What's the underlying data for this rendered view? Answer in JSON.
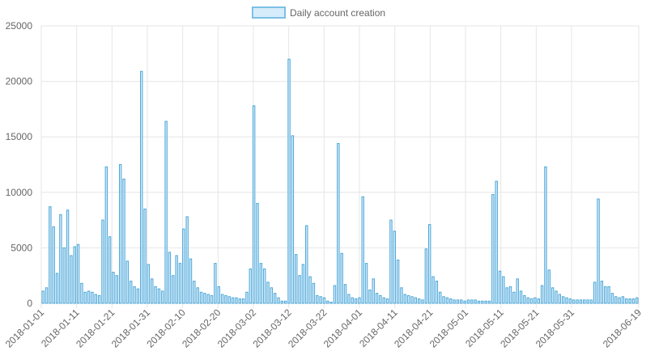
{
  "legend": {
    "label": "Daily account creation",
    "swatch_fill": "#d6ecfa",
    "swatch_stroke": "#7cc0e6"
  },
  "colors": {
    "bar_fill": "#d6ecfa",
    "bar_stroke": "#4aa6d8",
    "grid": "#e6e6e6",
    "axis_text": "#666666"
  },
  "chart_data": {
    "type": "bar",
    "start_date": "2018-01-01",
    "end_date": "2018-06-19",
    "x_tick_labels": [
      "2018-01-01",
      "2018-01-11",
      "2018-01-21",
      "2018-01-31",
      "2018-02-10",
      "2018-02-20",
      "2018-03-02",
      "2018-03-12",
      "2018-03-22",
      "2018-04-01",
      "2018-04-11",
      "2018-04-21",
      "2018-05-01",
      "2018-05-11",
      "2018-05-21",
      "2018-05-31",
      "2018-06-19"
    ],
    "y_ticks": [
      0,
      5000,
      10000,
      15000,
      20000,
      25000
    ],
    "ylim": [
      0,
      25000
    ],
    "grid": true,
    "legend_position": "top",
    "series": [
      {
        "name": "Daily account creation",
        "values": [
          1100,
          1400,
          8700,
          6900,
          2700,
          8000,
          5000,
          8400,
          4300,
          5100,
          5300,
          1800,
          1000,
          1100,
          1000,
          800,
          700,
          7500,
          12300,
          6000,
          2800,
          2500,
          12500,
          11200,
          3800,
          2000,
          1500,
          1300,
          20900,
          8500,
          3500,
          2200,
          1500,
          1300,
          1100,
          16400,
          4600,
          2500,
          4300,
          3600,
          6700,
          7800,
          4000,
          2000,
          1400,
          1000,
          900,
          800,
          700,
          3600,
          1500,
          800,
          700,
          600,
          500,
          500,
          400,
          400,
          1000,
          3100,
          17800,
          9000,
          3600,
          3100,
          1900,
          1400,
          900,
          500,
          200,
          200,
          22000,
          15100,
          4400,
          2500,
          3500,
          7000,
          2400,
          1800,
          700,
          600,
          500,
          200,
          100,
          1600,
          14400,
          4500,
          1700,
          800,
          500,
          400,
          500,
          9600,
          3600,
          1200,
          2200,
          900,
          700,
          500,
          400,
          7500,
          6500,
          3900,
          1400,
          800,
          700,
          600,
          500,
          400,
          300,
          4900,
          7100,
          2400,
          2000,
          1000,
          600,
          500,
          400,
          300,
          300,
          300,
          200,
          300,
          300,
          300,
          200,
          200,
          200,
          200,
          9800,
          11000,
          2900,
          2400,
          1400,
          1500,
          1000,
          2200,
          1100,
          700,
          500,
          400,
          500,
          400,
          1600,
          12300,
          3000,
          1400,
          1100,
          800,
          600,
          500,
          400,
          300,
          300,
          300,
          300,
          300,
          300,
          1900,
          9400,
          2000,
          1500,
          1500,
          900,
          600,
          500,
          600,
          400,
          400,
          400,
          500
        ]
      }
    ]
  }
}
